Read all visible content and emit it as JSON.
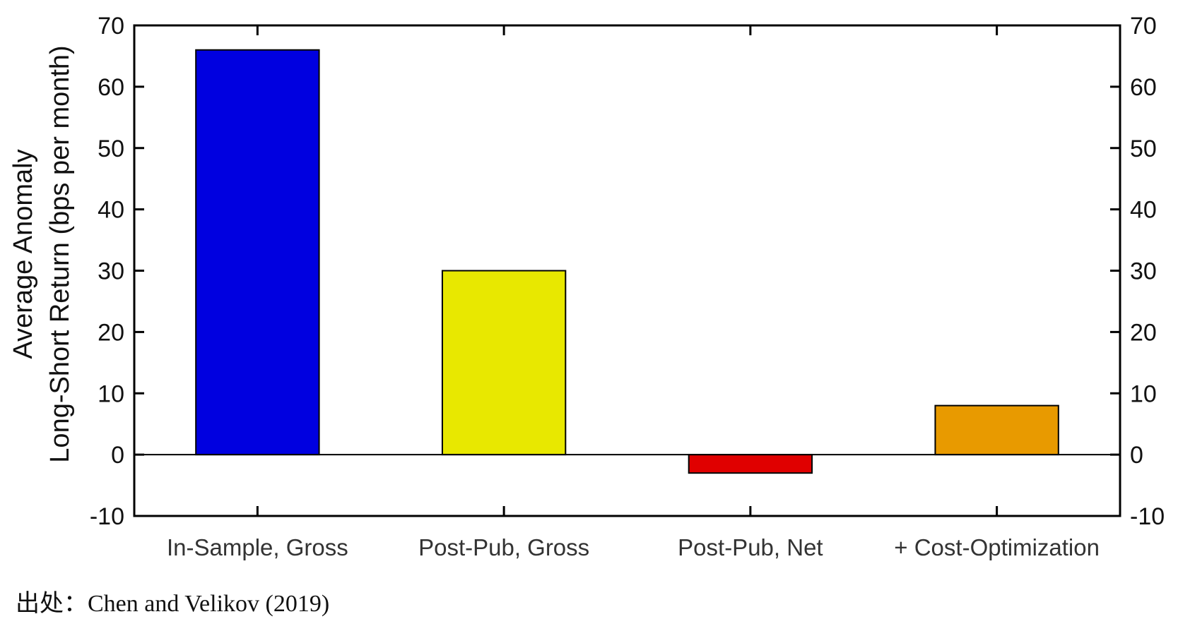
{
  "chart_data": {
    "type": "bar",
    "categories": [
      "In-Sample, Gross",
      "Post-Pub, Gross",
      "Post-Pub, Net",
      "+ Cost-Optimization"
    ],
    "values": [
      66,
      30,
      -3,
      8
    ],
    "colors": [
      "#0000e0",
      "#e8e800",
      "#e00000",
      "#e89a00"
    ],
    "ylim": [
      -10,
      70
    ],
    "yticks": [
      -10,
      0,
      10,
      20,
      30,
      40,
      50,
      60,
      70
    ],
    "ylabel_lines": [
      "Average Anomaly",
      "Long-Short Return (bps per month)"
    ],
    "right_axis_mirrored": true,
    "grid": false,
    "zero_line": true
  },
  "source": "出处：Chen and Velikov (2019)"
}
